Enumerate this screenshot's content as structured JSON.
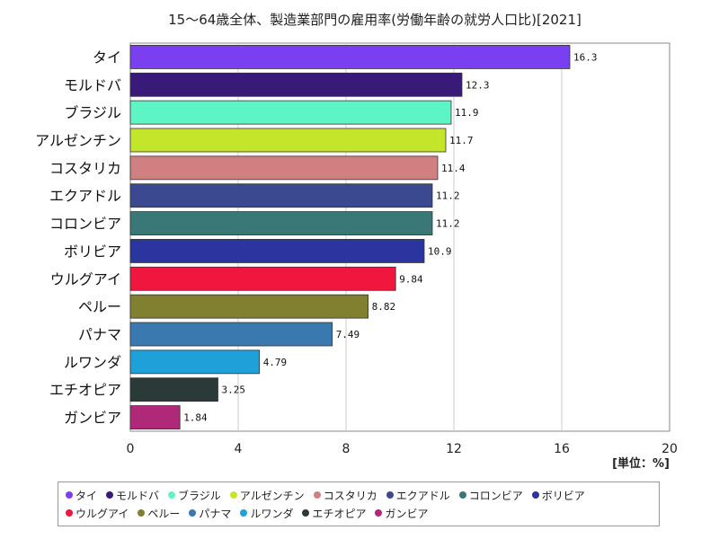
{
  "chart_data": {
    "type": "bar",
    "orientation": "horizontal",
    "title": "15～64歳全体、製造業部門の雇用率(労働年齢の就労人口比)[2021]",
    "unit_label": "[単位：%]",
    "xlim": [
      0,
      20
    ],
    "xticks": [
      "0",
      "4",
      "8",
      "12",
      "16",
      "20"
    ],
    "grid": true,
    "legend_position": "bottom",
    "categories": [
      "タイ",
      "モルドバ",
      "ブラジル",
      "アルゼンチン",
      "コスタリカ",
      "エクアドル",
      "コロンビア",
      "ボリビア",
      "ウルグアイ",
      "ペルー",
      "パナマ",
      "ルワンダ",
      "エチオピア",
      "ガンビア"
    ],
    "values": [
      16.3,
      12.3,
      11.9,
      11.7,
      11.4,
      11.2,
      11.2,
      10.9,
      9.84,
      8.82,
      7.49,
      4.79,
      3.25,
      1.84
    ],
    "value_labels": [
      "16.3",
      "12.3",
      "11.9",
      "11.7",
      "11.4",
      "11.2",
      "11.2",
      "10.9",
      "9.84",
      "8.82",
      "7.49",
      "4.79",
      "3.25",
      "1.84"
    ],
    "colors": [
      "#7b3ff2",
      "#3a1a78",
      "#5ef5c6",
      "#c4e62a",
      "#d08080",
      "#3b4a90",
      "#3a7878",
      "#2a35a0",
      "#f0163e",
      "#808030",
      "#3a78b0",
      "#1fa0d8",
      "#2a3a38",
      "#b02878"
    ]
  }
}
